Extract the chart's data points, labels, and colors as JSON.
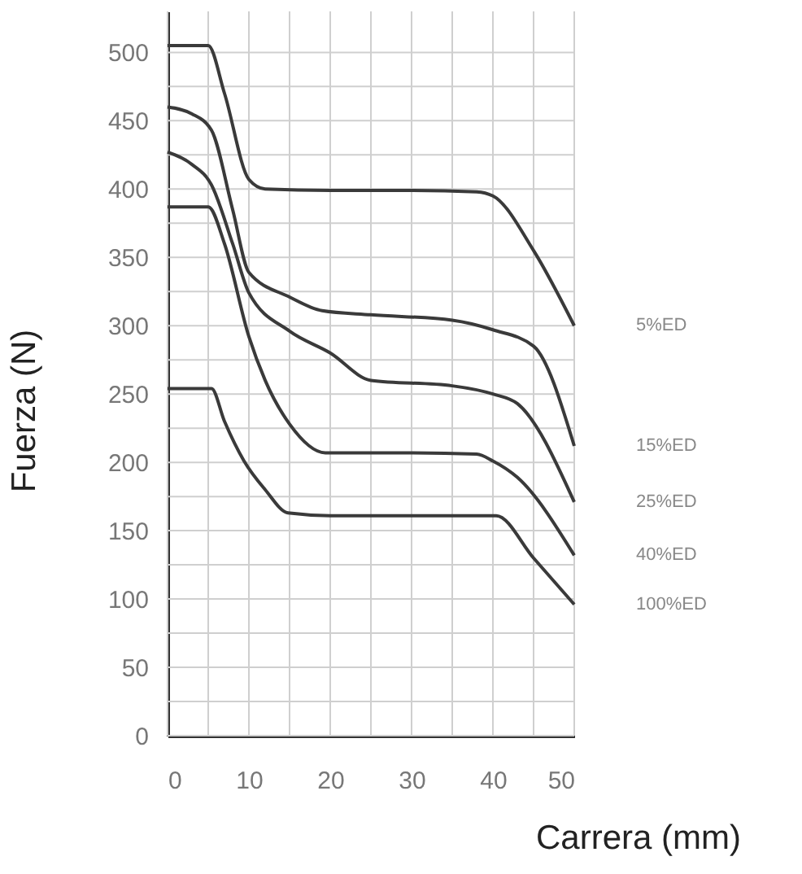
{
  "chart_data": {
    "type": "line",
    "xlabel": "Carrera (mm)",
    "ylabel": "Fuerza (N)",
    "xlim": [
      0,
      50
    ],
    "ylim": [
      0,
      530
    ],
    "xticks": [
      0,
      {
        "value": 5,
        "label": null
      },
      10,
      {
        "value": 15,
        "label": null
      },
      20,
      {
        "value": 25,
        "label": null
      },
      30,
      {
        "value": 35,
        "label": null
      },
      40,
      {
        "value": 45,
        "label": null
      },
      50
    ],
    "yticks": [
      0,
      {
        "value": 25,
        "label": null
      },
      50,
      {
        "value": 75,
        "label": null
      },
      100,
      {
        "value": 125,
        "label": null
      },
      150,
      {
        "value": 175,
        "label": null
      },
      200,
      {
        "value": 225,
        "label": null
      },
      250,
      {
        "value": 275,
        "label": null
      },
      300,
      {
        "value": 325,
        "label": null
      },
      350,
      {
        "value": 375,
        "label": null
      },
      400,
      {
        "value": 425,
        "label": null
      },
      450,
      {
        "value": 475,
        "label": null
      },
      500
    ],
    "grid": true,
    "marker": "none",
    "line_style": "solid",
    "series": [
      {
        "name": "5%ED",
        "color": "#3a3a3a",
        "x": [
          0,
          5,
          7,
          10,
          12,
          20,
          30,
          38,
          40,
          45,
          50
        ],
        "values": [
          505,
          505,
          470,
          407,
          400,
          399,
          399,
          398,
          395,
          355,
          300
        ]
      },
      {
        "name": "15%ED",
        "color": "#3a3a3a",
        "x": [
          0,
          3,
          5.4,
          8,
          10,
          15,
          19,
          25,
          35,
          40,
          45,
          50
        ],
        "values": [
          460,
          455,
          443,
          385,
          339,
          321,
          311,
          308,
          304,
          297,
          285,
          212
        ]
      },
      {
        "name": "25%ED",
        "color": "#3a3a3a",
        "x": [
          0,
          3,
          5.4,
          8,
          10,
          15,
          20,
          25,
          35,
          40,
          43,
          50
        ],
        "values": [
          427,
          418,
          403,
          360,
          324,
          296,
          280,
          260,
          256,
          250,
          243,
          171
        ]
      },
      {
        "name": "40%ED",
        "color": "#3a3a3a",
        "x": [
          0,
          5,
          7,
          10,
          12,
          15,
          19.4,
          30,
          38,
          40,
          43,
          50
        ],
        "values": [
          387,
          387,
          360,
          292,
          260,
          228,
          207,
          207,
          206,
          201,
          189,
          132
        ]
      },
      {
        "name": "100%ED",
        "color": "#3a3a3a",
        "x": [
          0,
          5.4,
          7,
          9.4,
          12,
          14.8,
          20,
          30,
          40.4,
          45,
          50
        ],
        "values": [
          254,
          254,
          230,
          201,
          180,
          163,
          161,
          161,
          161,
          130,
          96
        ]
      }
    ]
  }
}
